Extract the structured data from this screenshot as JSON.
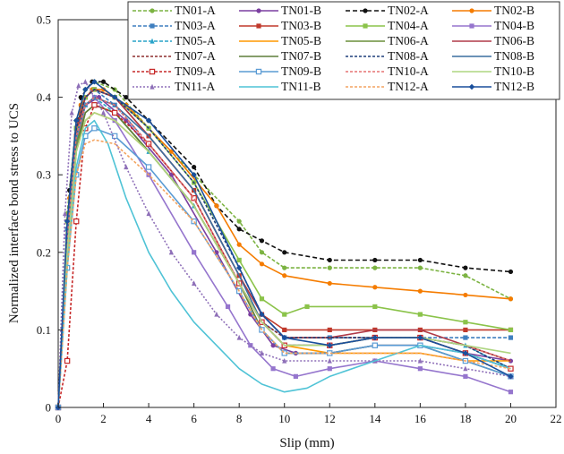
{
  "chart_data": {
    "type": "line",
    "title": "",
    "xlabel": "Slip (mm)",
    "ylabel": "Normalized interface bond stress to UCS",
    "xlim": [
      0,
      22
    ],
    "ylim": [
      0,
      0.5
    ],
    "xticks": [
      "0",
      "2",
      "4",
      "6",
      "8",
      "10",
      "12",
      "14",
      "16",
      "18",
      "20",
      "22"
    ],
    "yticks": [
      "0",
      "0.1",
      "0.2",
      "0.3",
      "0.4",
      "0.5"
    ],
    "grid": false,
    "legend_position": "top-right",
    "series": [
      {
        "name": "TN01-A",
        "color": "#7cb342",
        "dash": "4 2",
        "marker": "circle",
        "x": [
          0,
          0.4,
          0.8,
          1.2,
          1.6,
          2.5,
          4,
          6,
          8,
          9,
          10,
          12,
          14,
          16,
          18,
          20
        ],
        "y": [
          0,
          0.25,
          0.37,
          0.41,
          0.42,
          0.41,
          0.36,
          0.3,
          0.24,
          0.2,
          0.18,
          0.18,
          0.18,
          0.18,
          0.17,
          0.14
        ]
      },
      {
        "name": "TN01-B",
        "color": "#7b3fa0",
        "dash": "",
        "marker": "circle",
        "x": [
          0,
          0.4,
          0.8,
          1.2,
          1.8,
          3,
          5,
          7,
          8.5,
          9.5,
          10.5,
          12,
          14,
          16,
          18,
          20
        ],
        "y": [
          0,
          0.2,
          0.34,
          0.39,
          0.4,
          0.37,
          0.3,
          0.2,
          0.12,
          0.08,
          0.07,
          0.07,
          0.08,
          0.08,
          0.07,
          0.06
        ]
      },
      {
        "name": "TN02-A",
        "color": "#111111",
        "dash": "5 3",
        "marker": "circle",
        "x": [
          0,
          0.5,
          1,
          1.5,
          2,
          3,
          4,
          6,
          7,
          8,
          9,
          10,
          12,
          14,
          16,
          18,
          20
        ],
        "y": [
          0,
          0.28,
          0.4,
          0.42,
          0.42,
          0.4,
          0.37,
          0.31,
          0.26,
          0.23,
          0.215,
          0.2,
          0.19,
          0.19,
          0.19,
          0.18,
          0.175
        ]
      },
      {
        "name": "TN02-B",
        "color": "#f57c00",
        "dash": "",
        "marker": "circle",
        "x": [
          0,
          0.5,
          1,
          1.5,
          2,
          3,
          5,
          7,
          8,
          9,
          10,
          12,
          14,
          16,
          18,
          20
        ],
        "y": [
          0,
          0.27,
          0.39,
          0.41,
          0.41,
          0.39,
          0.33,
          0.26,
          0.21,
          0.185,
          0.17,
          0.16,
          0.155,
          0.15,
          0.145,
          0.14
        ]
      },
      {
        "name": "TN03-A",
        "color": "#3f7fbf",
        "dash": "4 2",
        "marker": "square",
        "x": [
          0,
          0.4,
          0.8,
          1.2,
          1.6,
          2.5,
          4,
          6,
          8,
          9,
          10,
          12,
          14,
          16,
          18,
          20
        ],
        "y": [
          0,
          0.23,
          0.36,
          0.4,
          0.41,
          0.39,
          0.34,
          0.27,
          0.16,
          0.11,
          0.09,
          0.09,
          0.09,
          0.09,
          0.09,
          0.09
        ]
      },
      {
        "name": "TN03-B",
        "color": "#c0392b",
        "dash": "",
        "marker": "square",
        "x": [
          0,
          0.4,
          0.8,
          1.2,
          1.6,
          2.5,
          4,
          6,
          8,
          9,
          10,
          12,
          14,
          16,
          18,
          20
        ],
        "y": [
          0,
          0.22,
          0.35,
          0.4,
          0.41,
          0.4,
          0.35,
          0.28,
          0.17,
          0.12,
          0.1,
          0.1,
          0.1,
          0.1,
          0.1,
          0.1
        ]
      },
      {
        "name": "TN04-A",
        "color": "#8bc34a",
        "dash": "",
        "marker": "square",
        "x": [
          0,
          0.4,
          0.8,
          1.2,
          1.6,
          2.5,
          4,
          6,
          8,
          9,
          10,
          11,
          14,
          16,
          18,
          20
        ],
        "y": [
          0,
          0.24,
          0.36,
          0.4,
          0.41,
          0.4,
          0.36,
          0.29,
          0.19,
          0.14,
          0.12,
          0.13,
          0.13,
          0.12,
          0.11,
          0.1
        ]
      },
      {
        "name": "TN04-B",
        "color": "#9575cd",
        "dash": "",
        "marker": "square",
        "x": [
          0,
          0.4,
          0.8,
          1.2,
          1.6,
          2.5,
          4,
          6,
          7.5,
          8.5,
          9.5,
          10.5,
          12,
          14,
          16,
          18,
          20
        ],
        "y": [
          0,
          0.22,
          0.34,
          0.39,
          0.4,
          0.37,
          0.3,
          0.2,
          0.13,
          0.08,
          0.05,
          0.04,
          0.05,
          0.06,
          0.05,
          0.04,
          0.02
        ]
      },
      {
        "name": "TN05-A",
        "color": "#29a3c9",
        "dash": "4 2",
        "marker": "triangle",
        "x": [
          0,
          0.4,
          0.8,
          1.2,
          1.6,
          2.5,
          4,
          6,
          8,
          9,
          10,
          12,
          14,
          16,
          18,
          20
        ],
        "y": [
          0,
          0.22,
          0.35,
          0.39,
          0.4,
          0.38,
          0.33,
          0.26,
          0.16,
          0.11,
          0.08,
          0.08,
          0.09,
          0.09,
          0.08,
          0.05
        ]
      },
      {
        "name": "TN05-B",
        "color": "#ff9800",
        "dash": "",
        "marker": "none",
        "x": [
          0,
          0.4,
          0.8,
          1.2,
          1.6,
          2.5,
          4,
          6,
          8,
          9,
          10,
          12,
          14,
          16,
          18,
          20
        ],
        "y": [
          0,
          0.2,
          0.33,
          0.37,
          0.38,
          0.37,
          0.33,
          0.26,
          0.16,
          0.11,
          0.08,
          0.07,
          0.07,
          0.07,
          0.06,
          0.06
        ]
      },
      {
        "name": "TN06-A",
        "color": "#6a8f3a",
        "dash": "",
        "marker": "none",
        "x": [
          0,
          0.4,
          0.8,
          1.2,
          1.6,
          2.5,
          4,
          6,
          8,
          9,
          10,
          12,
          14,
          16,
          18,
          20
        ],
        "y": [
          0,
          0.21,
          0.34,
          0.38,
          0.39,
          0.38,
          0.33,
          0.26,
          0.16,
          0.11,
          0.08,
          0.08,
          0.09,
          0.09,
          0.07,
          0.05
        ]
      },
      {
        "name": "TN06-B",
        "color": "#b03a48",
        "dash": "",
        "marker": "none",
        "x": [
          0,
          0.4,
          0.8,
          1.2,
          1.6,
          2.5,
          4,
          6,
          8,
          9,
          10,
          12,
          14,
          16,
          18,
          20
        ],
        "y": [
          0,
          0.23,
          0.36,
          0.4,
          0.41,
          0.4,
          0.35,
          0.28,
          0.17,
          0.12,
          0.09,
          0.09,
          0.1,
          0.1,
          0.08,
          0.06
        ]
      },
      {
        "name": "TN07-A",
        "color": "#8d2f2f",
        "dash": "3 2",
        "marker": "none",
        "x": [
          0,
          0.4,
          0.8,
          1.2,
          1.6,
          2.5,
          4,
          6,
          8,
          9,
          10,
          12,
          14,
          16,
          18,
          20
        ],
        "y": [
          0,
          0.22,
          0.35,
          0.39,
          0.4,
          0.39,
          0.34,
          0.27,
          0.16,
          0.11,
          0.09,
          0.09,
          0.09,
          0.09,
          0.08,
          0.06
        ]
      },
      {
        "name": "TN07-B",
        "color": "#5f7f3a",
        "dash": "",
        "marker": "none",
        "x": [
          0,
          0.4,
          0.8,
          1.2,
          1.6,
          2.5,
          4,
          6,
          8,
          9,
          10,
          12,
          14,
          16,
          18,
          20
        ],
        "y": [
          0,
          0.2,
          0.33,
          0.38,
          0.39,
          0.38,
          0.33,
          0.26,
          0.16,
          0.1,
          0.07,
          0.07,
          0.08,
          0.08,
          0.06,
          0.04
        ]
      },
      {
        "name": "TN08-A",
        "color": "#1f3f7a",
        "dash": "3 2",
        "marker": "none",
        "x": [
          0,
          0.4,
          0.8,
          1.2,
          1.6,
          2.5,
          4,
          6,
          8,
          9,
          10,
          12,
          14,
          16,
          18,
          20
        ],
        "y": [
          0,
          0.23,
          0.36,
          0.4,
          0.41,
          0.4,
          0.36,
          0.29,
          0.18,
          0.12,
          0.09,
          0.09,
          0.09,
          0.09,
          0.08,
          0.05
        ]
      },
      {
        "name": "TN08-B",
        "color": "#3a6f9f",
        "dash": "",
        "marker": "none",
        "x": [
          0,
          0.4,
          0.8,
          1.2,
          1.6,
          2.5,
          4,
          6,
          8,
          9,
          10,
          12,
          14,
          16,
          18,
          20
        ],
        "y": [
          0,
          0.22,
          0.35,
          0.39,
          0.4,
          0.39,
          0.35,
          0.28,
          0.17,
          0.11,
          0.08,
          0.08,
          0.09,
          0.09,
          0.07,
          0.05
        ]
      },
      {
        "name": "TN09-A",
        "color": "#c62828",
        "dash": "3 2",
        "marker": "square-open",
        "x": [
          0,
          0.4,
          0.8,
          1.2,
          1.6,
          2.5,
          4,
          6,
          8,
          9,
          10,
          12,
          14,
          16,
          18,
          20
        ],
        "y": [
          0,
          0.06,
          0.24,
          0.36,
          0.39,
          0.38,
          0.34,
          0.27,
          0.16,
          0.11,
          0.08,
          0.08,
          0.09,
          0.09,
          0.07,
          0.05
        ]
      },
      {
        "name": "TN09-B",
        "color": "#5a9bd4",
        "dash": "",
        "marker": "square-open",
        "x": [
          0,
          0.4,
          0.8,
          1.2,
          1.6,
          2.5,
          4,
          6,
          8,
          9,
          10,
          12,
          14,
          16,
          18,
          20
        ],
        "y": [
          0,
          0.18,
          0.3,
          0.35,
          0.36,
          0.35,
          0.31,
          0.24,
          0.15,
          0.1,
          0.07,
          0.07,
          0.08,
          0.08,
          0.06,
          0.04
        ]
      },
      {
        "name": "TN10-A",
        "color": "#e57373",
        "dash": "3 2",
        "marker": "none",
        "x": [
          0,
          0.4,
          0.8,
          1.2,
          1.6,
          2.5,
          4,
          6,
          8,
          9,
          10,
          12,
          14,
          16,
          18,
          20
        ],
        "y": [
          0,
          0.22,
          0.35,
          0.39,
          0.4,
          0.39,
          0.34,
          0.27,
          0.16,
          0.11,
          0.08,
          0.08,
          0.09,
          0.09,
          0.08,
          0.06
        ]
      },
      {
        "name": "TN10-B",
        "color": "#aed581",
        "dash": "",
        "marker": "none",
        "x": [
          0,
          0.4,
          0.8,
          1.2,
          1.6,
          2.5,
          4,
          6,
          8,
          9,
          10,
          12,
          14,
          16,
          18,
          20
        ],
        "y": [
          0,
          0.2,
          0.33,
          0.37,
          0.38,
          0.37,
          0.33,
          0.26,
          0.16,
          0.11,
          0.08,
          0.08,
          0.09,
          0.09,
          0.08,
          0.07
        ]
      },
      {
        "name": "TN11-A",
        "color": "#8e6fb8",
        "dash": "2 2",
        "marker": "triangle",
        "x": [
          0,
          0.3,
          0.6,
          0.9,
          1.2,
          2,
          3,
          4,
          5,
          6,
          7,
          8,
          9,
          10,
          12,
          14,
          16,
          18,
          20
        ],
        "y": [
          0,
          0.25,
          0.38,
          0.415,
          0.42,
          0.38,
          0.31,
          0.25,
          0.2,
          0.16,
          0.12,
          0.09,
          0.07,
          0.06,
          0.06,
          0.06,
          0.06,
          0.05,
          0.04
        ]
      },
      {
        "name": "TN11-B",
        "color": "#4fc3d6",
        "dash": "",
        "marker": "none",
        "x": [
          0,
          0.4,
          0.8,
          1.2,
          1.6,
          2.2,
          3,
          4,
          5,
          6,
          7,
          8,
          9,
          10,
          11,
          12,
          14,
          16,
          18,
          20
        ],
        "y": [
          0,
          0.18,
          0.31,
          0.36,
          0.37,
          0.34,
          0.27,
          0.2,
          0.15,
          0.11,
          0.08,
          0.05,
          0.03,
          0.02,
          0.025,
          0.04,
          0.06,
          0.08,
          0.07,
          0.05
        ]
      },
      {
        "name": "TN12-A",
        "color": "#f4a460",
        "dash": "3 2",
        "marker": "none",
        "x": [
          0,
          0.4,
          0.8,
          1.2,
          1.6,
          2.5,
          4,
          6,
          8,
          9,
          10,
          12,
          14,
          16,
          18,
          20
        ],
        "y": [
          0,
          0.18,
          0.3,
          0.34,
          0.345,
          0.34,
          0.3,
          0.24,
          0.15,
          0.1,
          0.07,
          0.07,
          0.07,
          0.07,
          0.06,
          0.05
        ]
      },
      {
        "name": "TN12-B",
        "color": "#1a4f9c",
        "dash": "",
        "marker": "diamond",
        "x": [
          0,
          0.4,
          0.8,
          1.2,
          1.6,
          2.5,
          4,
          6,
          8,
          9,
          10,
          12,
          14,
          16,
          18,
          20
        ],
        "y": [
          0,
          0.24,
          0.37,
          0.41,
          0.42,
          0.4,
          0.37,
          0.3,
          0.18,
          0.12,
          0.09,
          0.08,
          0.09,
          0.09,
          0.07,
          0.04
        ]
      }
    ]
  }
}
